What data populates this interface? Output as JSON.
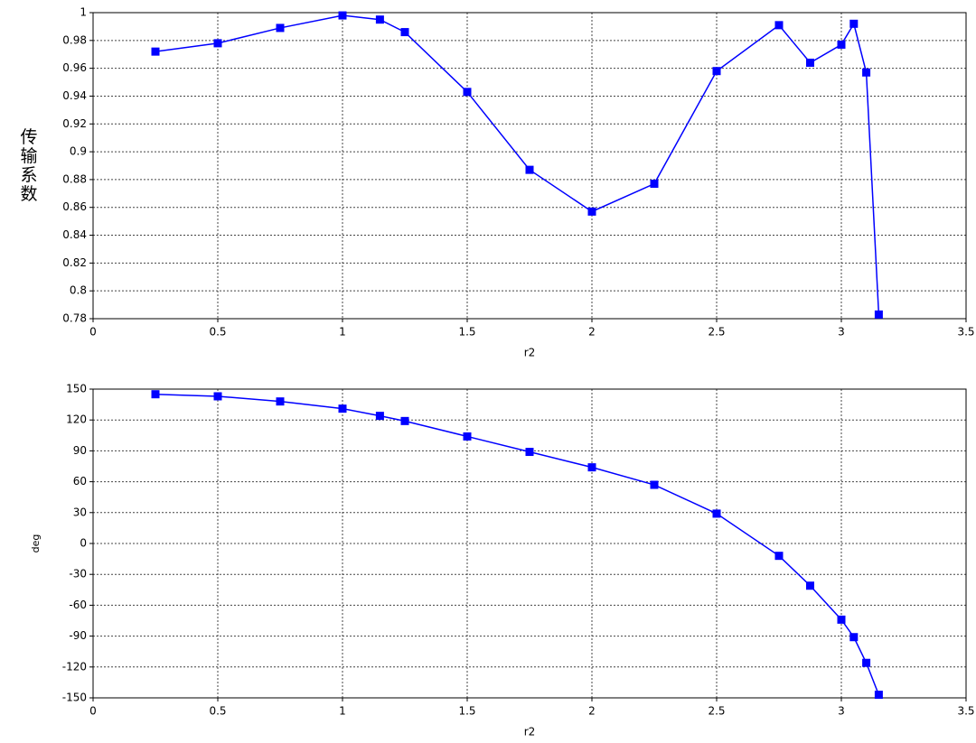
{
  "chart_data": [
    {
      "type": "line",
      "xlabel": "r2",
      "ylabel": "传输系数",
      "color": "#0000ff",
      "grid": true,
      "x": [
        0.25,
        0.5,
        0.75,
        1.0,
        1.15,
        1.25,
        1.5,
        1.75,
        2.0,
        2.25,
        2.5,
        2.75,
        2.875,
        3.0,
        3.05,
        3.1,
        3.15
      ],
      "values": [
        0.972,
        0.978,
        0.989,
        0.998,
        0.995,
        0.986,
        0.943,
        0.887,
        0.857,
        0.877,
        0.958,
        0.991,
        0.964,
        0.977,
        0.992,
        0.957,
        0.783
      ],
      "xlim": [
        0,
        3.5
      ],
      "xticks": [
        0,
        0.5,
        1,
        1.5,
        2,
        2.5,
        3,
        3.5
      ],
      "ylim": [
        0.78,
        1
      ],
      "yticks": [
        0.78,
        0.8,
        0.82,
        0.84,
        0.86,
        0.88,
        0.9,
        0.92,
        0.94,
        0.96,
        0.98,
        1
      ]
    },
    {
      "type": "line",
      "xlabel": "r2",
      "ylabel": "deg",
      "color": "#0000ff",
      "grid": true,
      "x": [
        0.25,
        0.5,
        0.75,
        1.0,
        1.15,
        1.25,
        1.5,
        1.75,
        2.0,
        2.25,
        2.5,
        2.75,
        2.875,
        3.0,
        3.05,
        3.1,
        3.15
      ],
      "values": [
        145,
        143,
        138,
        131,
        124,
        119,
        104,
        89,
        74,
        57,
        29,
        -12,
        -41,
        -74,
        -91,
        -116,
        -147
      ],
      "xlim": [
        0,
        3.5
      ],
      "xticks": [
        0,
        0.5,
        1,
        1.5,
        2,
        2.5,
        3,
        3.5
      ],
      "ylim": [
        -150,
        150
      ],
      "yticks": [
        -150,
        -120,
        -90,
        -60,
        -30,
        0,
        30,
        60,
        90,
        120,
        150
      ]
    }
  ]
}
